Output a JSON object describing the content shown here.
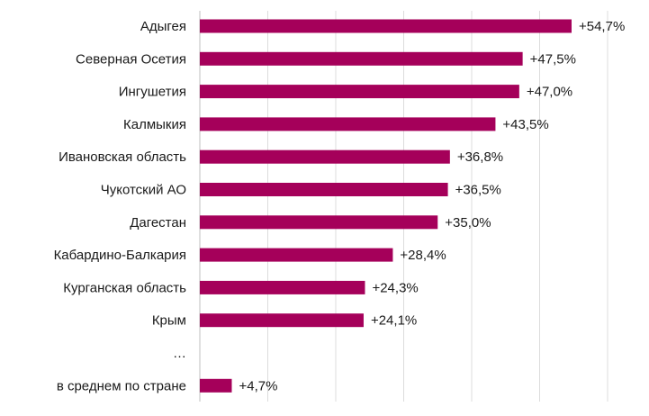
{
  "chart_data": {
    "type": "bar",
    "orientation": "horizontal",
    "title": "",
    "xlabel": "",
    "ylabel": "",
    "xlim": [
      0,
      60
    ],
    "grid": true,
    "bar_color": "#a5005a",
    "categories": [
      "Адыгея",
      "Северная Осетия",
      "Ингушетия",
      "Калмыкия",
      "Ивановская область",
      "Чукотский АО",
      "Дагестан",
      "Кабардино-Балкария",
      "Курганская область",
      "Крым",
      "…",
      "в среднем по стране"
    ],
    "values": [
      54.7,
      47.5,
      47.0,
      43.5,
      36.8,
      36.5,
      35.0,
      28.4,
      24.3,
      24.1,
      null,
      4.7
    ],
    "value_labels": [
      "+54,7%",
      "+47,5%",
      "+47,0%",
      "+43,5%",
      "+36,8%",
      "+36,5%",
      "+35,0%",
      "+28,4%",
      "+24,3%",
      "+24,1%",
      "",
      "+4,7%"
    ]
  }
}
